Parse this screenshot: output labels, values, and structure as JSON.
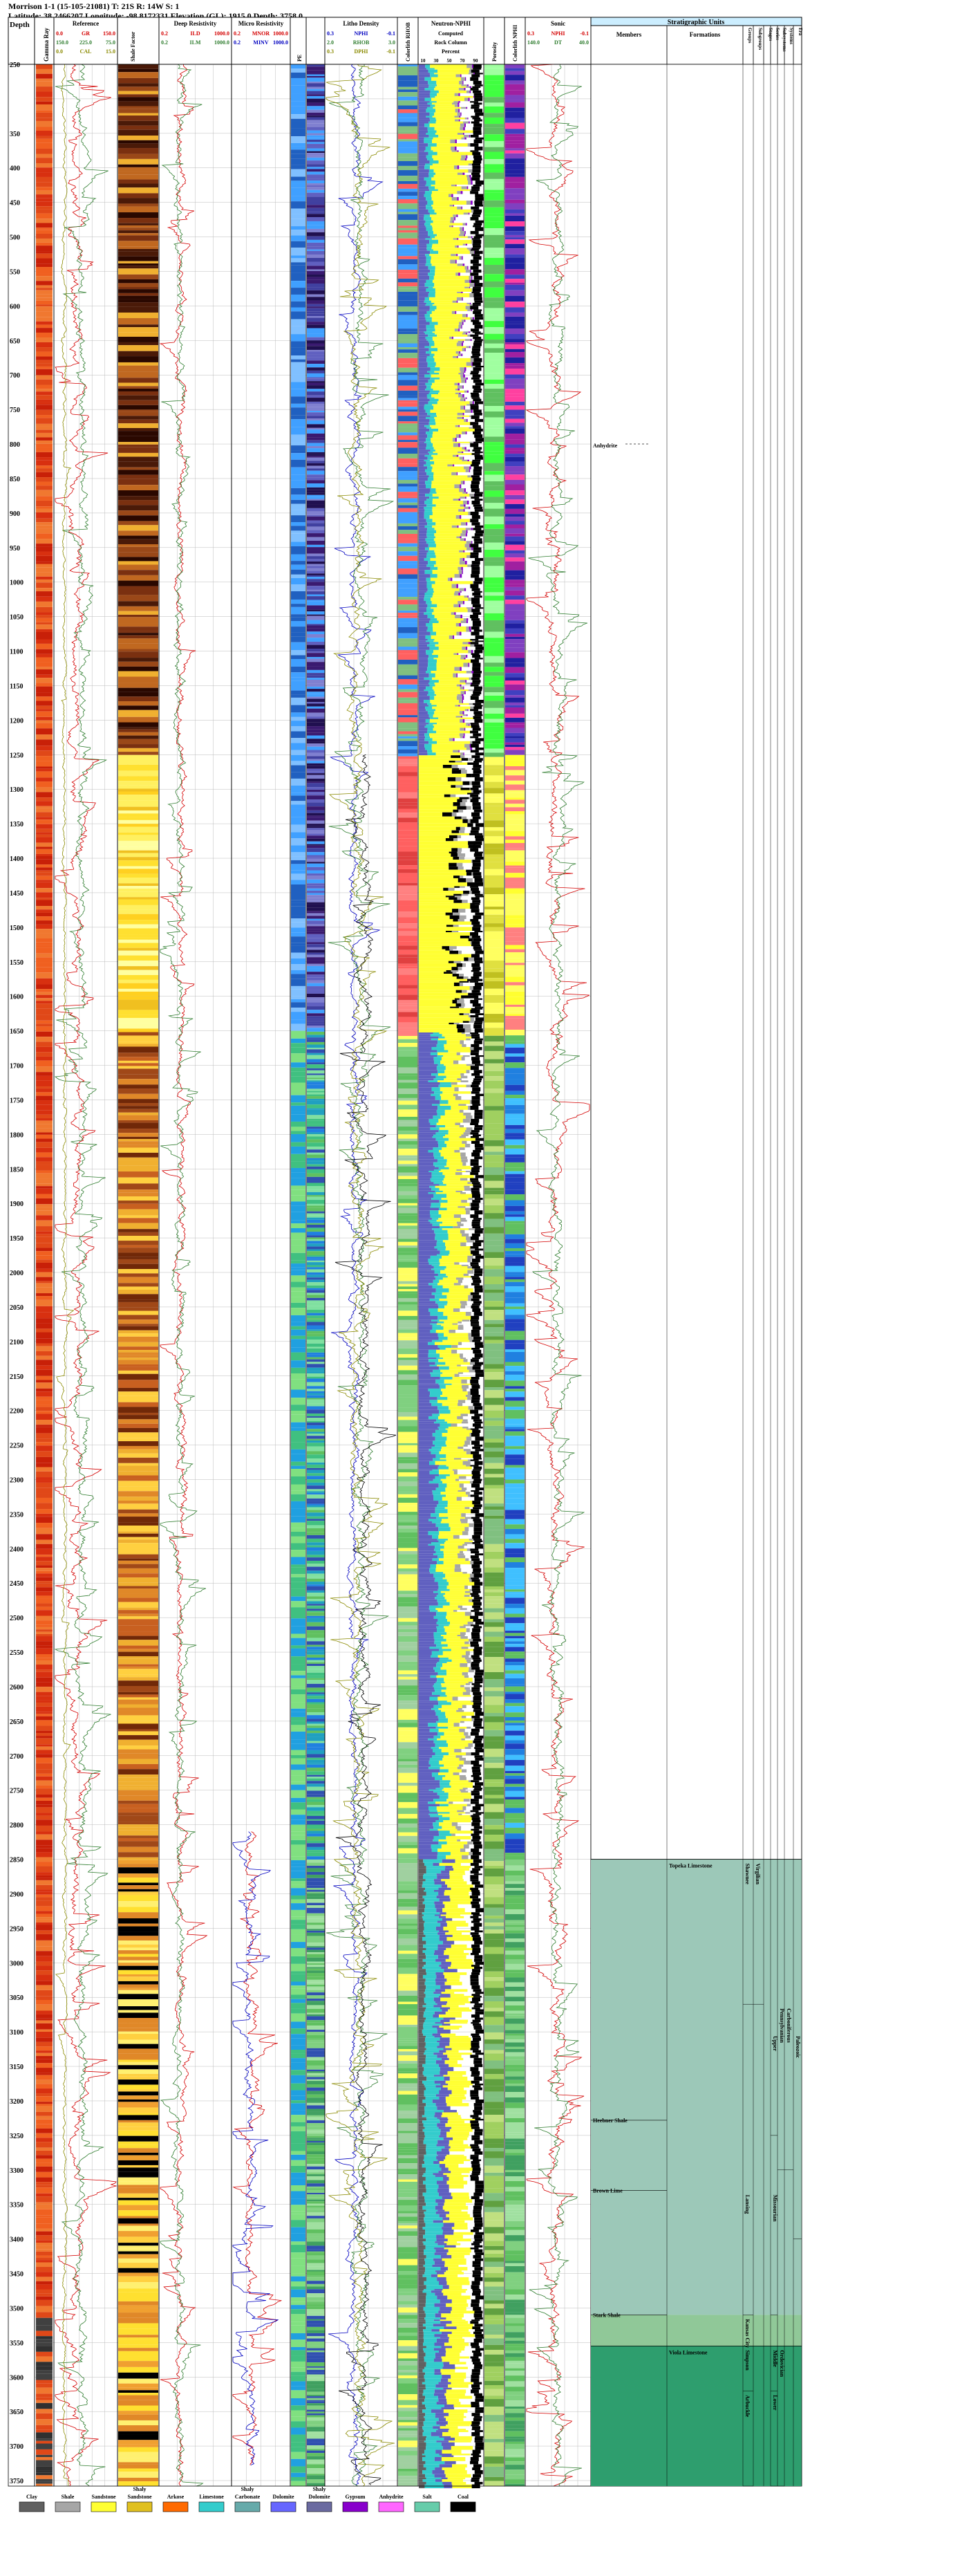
{
  "header": {
    "line1": "Morrison 1-1 (15-105-21081) T: 21S R: 14W S: 1",
    "line2": "Latitude: 38.2466207 Longitude: -98.8172331 Elevation (GL): 1915.0 Depth: 3758.0"
  },
  "depth_axis": {
    "label": "Depth",
    "ticks": [
      250,
      350,
      400,
      450,
      500,
      550,
      600,
      650,
      700,
      750,
      800,
      850,
      900,
      950,
      1000,
      1050,
      1100,
      1150,
      1200,
      1250,
      1300,
      1350,
      1400,
      1450,
      1500,
      1550,
      1600,
      1650,
      1700,
      1750,
      1800,
      1850,
      1900,
      1950,
      2000,
      2050,
      2100,
      2150,
      2200,
      2250,
      2300,
      2350,
      2400,
      2450,
      2500,
      2550,
      2600,
      2650,
      2700,
      2750,
      2800,
      2850,
      2900,
      2950,
      3000,
      3050,
      3100,
      3150,
      3200,
      3250,
      3300,
      3350,
      3400,
      3450,
      3500,
      3550,
      3600,
      3650,
      3700,
      3750
    ],
    "min": 250,
    "max": 3758
  },
  "tracks": {
    "gamma_ray": {
      "title": "Gamma Ray"
    },
    "reference": {
      "title": "Reference",
      "rows": [
        {
          "left": "0.0",
          "name": "GR",
          "right": "150.0",
          "color": "#d40000"
        },
        {
          "left": "150.0",
          "name": "225.0",
          "right": "75.0",
          "color": "#2f7d2f"
        },
        {
          "left": "0.0",
          "name": "CAL",
          "right": "15.0",
          "color": "#8a8a00"
        }
      ]
    },
    "shale": {
      "title": "Shale Factor"
    },
    "deep_resistivity": {
      "title": "Deep Resistivity",
      "rows": [
        {
          "left": "0.2",
          "name": "ILD",
          "right": "1000.0",
          "color": "#d40000"
        },
        {
          "left": "0.2",
          "name": "ILM",
          "right": "1000.0",
          "color": "#2f7d2f"
        }
      ]
    },
    "micro_resistivity": {
      "title": "Micro Resistivity",
      "rows": [
        {
          "left": "0.2",
          "name": "MNOR",
          "right": "1000.0",
          "color": "#d40000"
        },
        {
          "left": "0.2",
          "name": "MINV",
          "right": "1000.0",
          "color": "#0000c0"
        }
      ]
    },
    "pe": {
      "title": "PE"
    },
    "litho_density": {
      "title": "Litho Density",
      "rows": [
        {
          "left": "0.3",
          "name": "NPHI",
          "right": "-0.1",
          "color": "#0000c0"
        },
        {
          "left": "2.0",
          "name": "RHOB",
          "right": "3.0",
          "color": "#2f7d2f"
        },
        {
          "left": "0.3",
          "name": "DPHI",
          "right": "-0.1",
          "color": "#8a8a00"
        }
      ]
    },
    "colorlith_rhob": {
      "title": "Colorlith RHOB"
    },
    "neutron_nphi": {
      "title": "Neutron-NPHI",
      "lines": [
        "Computed",
        "Rock Column",
        "Percent"
      ],
      "scale": [
        "10",
        "30",
        "50",
        "70",
        "90"
      ]
    },
    "porosity": {
      "title": "Porosity"
    },
    "colorlith_nphi": {
      "title": "Colorlith NPHI"
    },
    "sonic": {
      "title": "Sonic",
      "rows": [
        {
          "left": "0.3",
          "name": "NPHI",
          "right": "-0.1",
          "color": "#d40000"
        },
        {
          "left": "140.0",
          "name": "DT",
          "right": "40.0",
          "color": "#2f7d2f"
        }
      ]
    }
  },
  "stratigraphy": {
    "title": "Stratigraphic Units",
    "columns": [
      "Members",
      "Formations",
      "Groups",
      "Subgroups",
      "Stages",
      "Series",
      "Subsystems",
      "Systems",
      "Era"
    ],
    "anhydrite_label": "Anhydrite",
    "members": [
      {
        "name": "Heebner Shale",
        "depth": 3228
      },
      {
        "name": "Brown Lime",
        "depth": 3330
      },
      {
        "name": "Stark Shale",
        "depth": 3510
      }
    ],
    "formations": [
      {
        "name": "Topeka Limestone",
        "depth": 2850
      },
      {
        "name": "Viola Limestone",
        "depth": 3555
      }
    ],
    "groups": [
      {
        "name": "Shawnee",
        "top": 2850,
        "bottom": 3060
      },
      {
        "name": "Virgilian",
        "top": 2850,
        "bottom": 3060
      },
      {
        "name": "Lansing",
        "top": 3330,
        "bottom": 3510
      },
      {
        "name": "Kansas City",
        "top": 3510,
        "bottom": 3555
      },
      {
        "name": "Simpson",
        "top": 3555,
        "bottom": 3620
      },
      {
        "name": "Arbuckle",
        "top": 3620,
        "bottom": 3758
      }
    ],
    "series": [
      {
        "name": "Upper",
        "top": 3100,
        "bottom": 3250
      },
      {
        "name": "Missourian",
        "top": 3330,
        "bottom": 3510
      },
      {
        "name": "Middle",
        "top": 3555,
        "bottom": 3620
      },
      {
        "name": "Lower",
        "top": 3620,
        "bottom": 3758
      }
    ],
    "systems": [
      {
        "name": "Pennsylvanian",
        "top": 3060,
        "bottom": 3300
      },
      {
        "name": "Carboniferous",
        "top": 3060,
        "bottom": 3300
      },
      {
        "name": "Ordovician",
        "top": 3555,
        "bottom": 3758
      }
    ],
    "era": [
      {
        "name": "Paleozoic",
        "top": 3100,
        "bottom": 3400
      }
    ]
  },
  "legend": {
    "items": [
      {
        "label": "Clay",
        "color": "#606060"
      },
      {
        "label": "Shale",
        "color": "#a6a6a6"
      },
      {
        "label": "Sandstone",
        "color": "#ffff33"
      },
      {
        "label": "Shaly Sandstone",
        "color": "#e0c020"
      },
      {
        "label": "Arkose",
        "color": "#ff6a00"
      },
      {
        "label": "Limestone",
        "color": "#33cccc"
      },
      {
        "label": "Shaly Carbonate",
        "color": "#66aaaa"
      },
      {
        "label": "Dolomite",
        "color": "#6666ff"
      },
      {
        "label": "Shaly Dolomite",
        "color": "#6a6aa0"
      },
      {
        "label": "Gypsum",
        "color": "#8800cc"
      },
      {
        "label": "Anhydrite",
        "color": "#ff66ff"
      },
      {
        "label": "Salt",
        "color": "#66ccaa"
      },
      {
        "label": "Coal",
        "color": "#000000"
      }
    ]
  },
  "colors": {
    "strat_fill": "#9cc8b8",
    "strat_fill_dark": "#2e9e6e",
    "header_blue": "#cceeff",
    "grid": "#bbbbbb"
  }
}
